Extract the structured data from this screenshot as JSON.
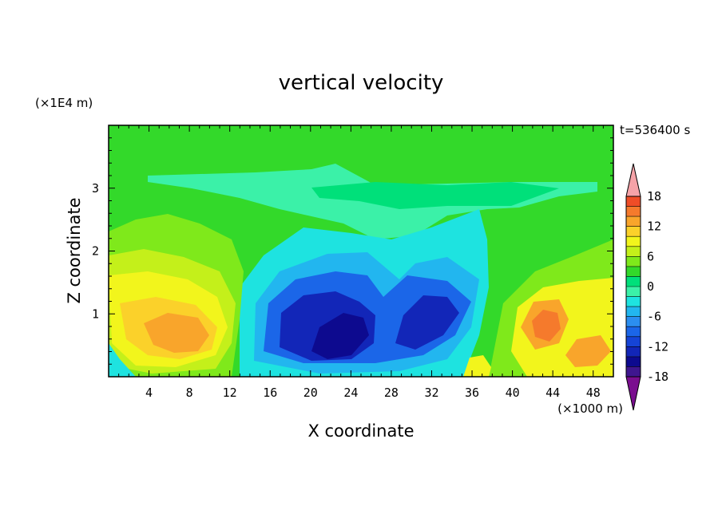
{
  "chart_data": {
    "type": "heatmap",
    "title": "vertical velocity",
    "xlabel": "X coordinate",
    "ylabel": "Z coordinate",
    "x_unit": "(×1000 m)",
    "y_unit": "(×1E4 m)",
    "time_label": "t=536400 s",
    "xlim": [
      0,
      50
    ],
    "ylim": [
      0,
      4
    ],
    "x_ticks": [
      4,
      8,
      12,
      16,
      20,
      24,
      28,
      32,
      36,
      40,
      44,
      48
    ],
    "y_ticks": [
      1,
      2,
      3
    ],
    "colorbar": {
      "levels": [
        -20,
        -18,
        -16,
        -14,
        -12,
        -10,
        -8,
        -6,
        -4,
        -2,
        0,
        2,
        4,
        6,
        8,
        10,
        12,
        14,
        16,
        18,
        20
      ],
      "tick_labels": [
        18,
        12,
        6,
        0,
        -6,
        -12,
        -18
      ],
      "colors": [
        "#7a0e8f",
        "#3f168f",
        "#0d0a8f",
        "#1226b8",
        "#1544d6",
        "#1b66e8",
        "#2b8ef0",
        "#22b6ef",
        "#1ee3e0",
        "#3bf1a8",
        "#00e07a",
        "#33d92a",
        "#7fe91b",
        "#c4f01a",
        "#f2f51c",
        "#fbd12a",
        "#f9a52b",
        "#f57a2c",
        "#ef4d27",
        "#e21b24",
        "#f5a3a8"
      ]
    },
    "features": [
      {
        "x": 6.5,
        "z": 0.9,
        "value": 12
      },
      {
        "x": 22.5,
        "z": 0.5,
        "value": -18
      },
      {
        "x": 30,
        "z": 0.9,
        "value": -10
      },
      {
        "x": 43,
        "z": 0.8,
        "value": 14
      },
      {
        "x": 45.5,
        "z": 0.4,
        "value": 10
      },
      {
        "x": 24,
        "z": 3.1,
        "value": 0
      },
      {
        "x": 36,
        "z": 0.2,
        "value": 6
      }
    ]
  }
}
